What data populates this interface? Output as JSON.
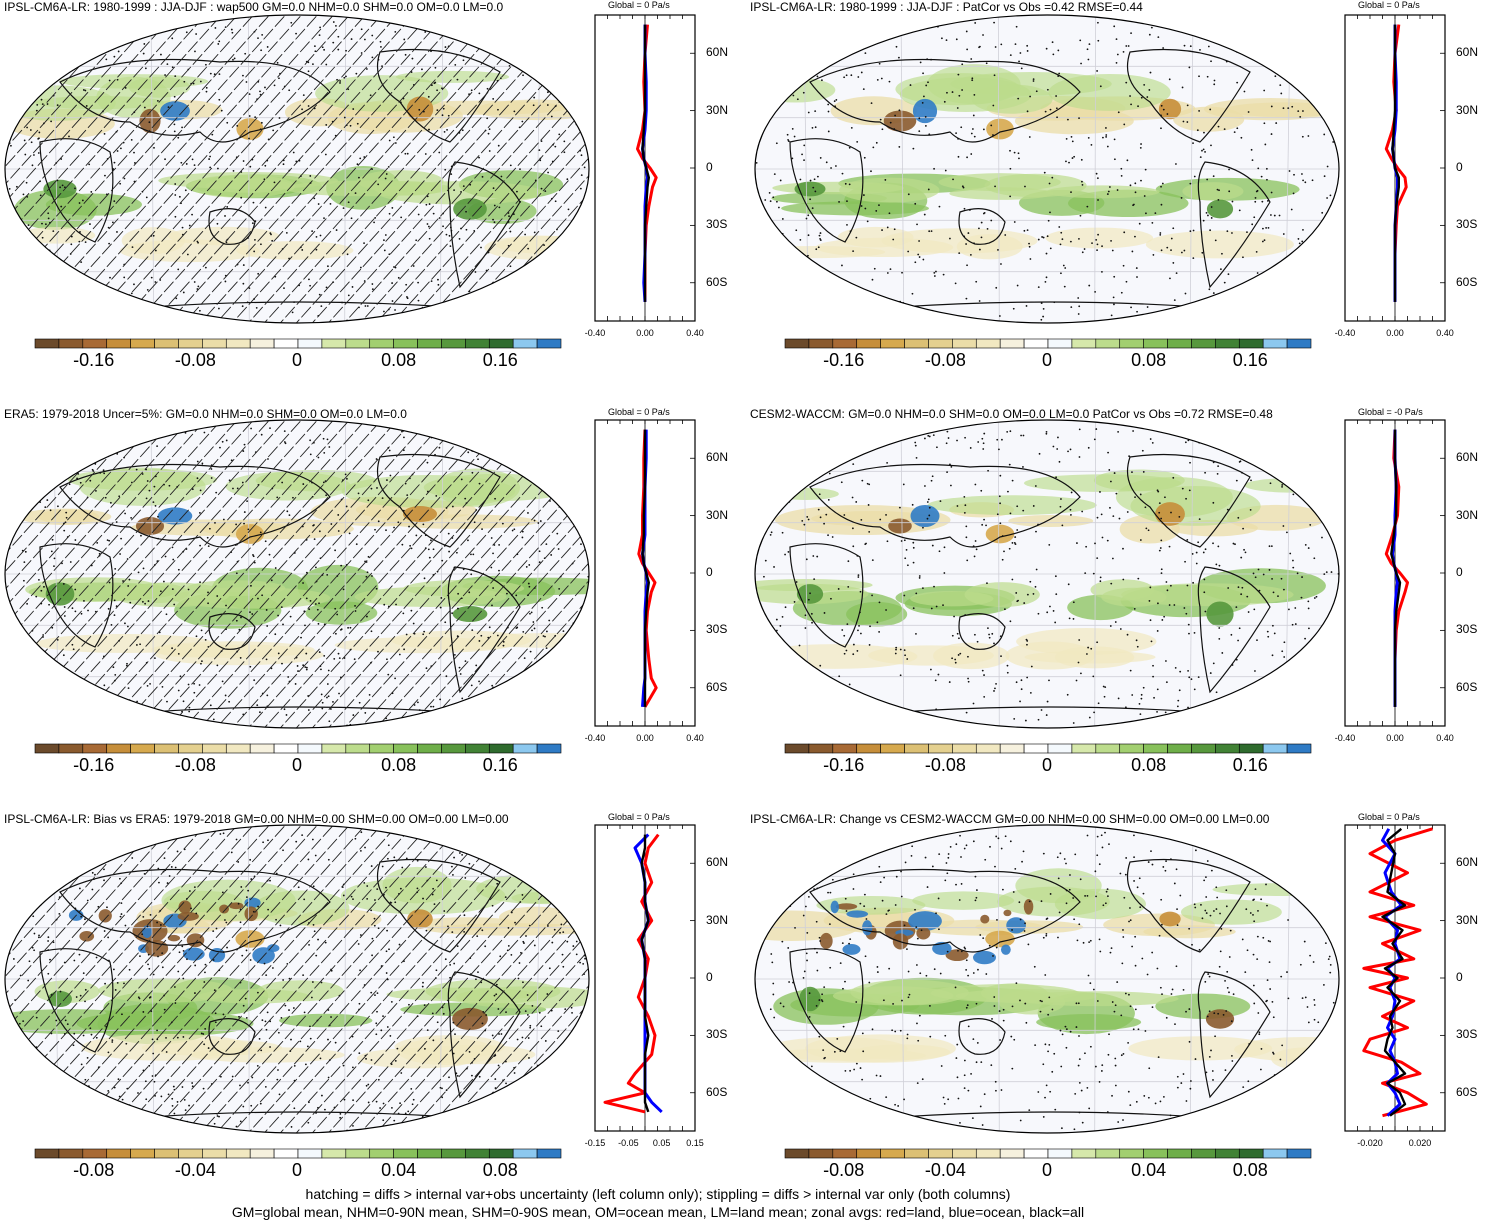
{
  "panels": [
    {
      "title": "IPSL-CM6A-LR: 1980-1999 : JJA-DJF : wap500 GM=0.0 NHM=0.0 SHM=0.0 OM=0.0 LM=0.0",
      "zonal_title": "Global = 0 Pa/s",
      "colorbar_ticks": [
        "-0.16",
        "-0.08",
        "0",
        "0.08",
        "0.16"
      ],
      "zonal_xticks": [
        "-0.40",
        "0.00",
        "0.40"
      ],
      "lat_ticks": [
        "60N",
        "30N",
        "0",
        "30S",
        "60S"
      ],
      "hatching": true
    },
    {
      "title": "IPSL-CM6A-LR: 1980-1999 : JJA-DJF : PatCor vs Obs =0.42 RMSE=0.44",
      "zonal_title": "Global = 0 Pa/s",
      "colorbar_ticks": [
        "-0.16",
        "-0.08",
        "0",
        "0.08",
        "0.16"
      ],
      "zonal_xticks": [
        "-0.40",
        "0.00",
        "0.40"
      ],
      "lat_ticks": [
        "60N",
        "30N",
        "0",
        "30S",
        "60S"
      ],
      "hatching": false
    },
    {
      "title": "ERA5: 1979-2018 Uncer=5%: GM=0.0 NHM=0.0 SHM=0.0 OM=0.0 LM=0.0",
      "zonal_title": "Global = 0 Pa/s",
      "colorbar_ticks": [
        "-0.16",
        "-0.08",
        "0",
        "0.08",
        "0.16"
      ],
      "zonal_xticks": [
        "-0.40",
        "0.00",
        "0.40"
      ],
      "lat_ticks": [
        "60N",
        "30N",
        "0",
        "30S",
        "60S"
      ],
      "hatching": true
    },
    {
      "title": "CESM2-WACCM: GM=0.0 NHM=0.0 SHM=0.0 OM=0.0 LM=0.0 PatCor vs Obs =0.72 RMSE=0.48",
      "zonal_title": "Global = -0 Pa/s",
      "colorbar_ticks": [
        "-0.16",
        "-0.08",
        "0",
        "0.08",
        "0.16"
      ],
      "zonal_xticks": [
        "-0.40",
        "0.00",
        "0.40"
      ],
      "lat_ticks": [
        "60N",
        "30N",
        "0",
        "30S",
        "60S"
      ],
      "hatching": false
    },
    {
      "title": "IPSL-CM6A-LR: Bias vs ERA5: 1979-2018 GM=0.00 NHM=0.00 SHM=0.00 OM=0.00 LM=0.00",
      "zonal_title": "Global = 0 Pa/s",
      "colorbar_ticks": [
        "-0.08",
        "-0.04",
        "0",
        "0.04",
        "0.08"
      ],
      "zonal_xticks": [
        "-0.15",
        "-0.05",
        "0.05",
        "0.15"
      ],
      "lat_ticks": [
        "60N",
        "30N",
        "0",
        "30S",
        "60S"
      ],
      "hatching": true
    },
    {
      "title": "IPSL-CM6A-LR: Change vs CESM2-WACCM GM=0.00 NHM=0.00 SHM=0.00 OM=0.00 LM=0.00",
      "zonal_title": "Global = 0 Pa/s",
      "colorbar_ticks": [
        "-0.08",
        "-0.04",
        "0",
        "0.04",
        "0.08"
      ],
      "zonal_xticks": [
        "-0.020",
        "0.020"
      ],
      "lat_ticks": [
        "60N",
        "30N",
        "0",
        "30S",
        "60S"
      ],
      "hatching": false
    }
  ],
  "footer": {
    "line1": "hatching = diffs > internal var+obs uncertainty (left column only); stippling = diffs > internal var only (both columns)",
    "line2": "GM=global mean, NHM=0-90N mean, SHM=0-90S mean, OM=ocean mean, LM=land mean; zonal avgs: red=land, blue=ocean, black=all"
  },
  "colors": {
    "colorbar": [
      "#6b4a2b",
      "#8a5a2e",
      "#a86a35",
      "#c68e3a",
      "#d6a94e",
      "#dcc074",
      "#e4d08f",
      "#ebdda8",
      "#f1e8c1",
      "#f6f1de",
      "#ffffff",
      "#f4f9fd",
      "#d6e8ab",
      "#bcdc8c",
      "#a2cf70",
      "#88c15b",
      "#6eae49",
      "#57983d",
      "#418235",
      "#2f6b2e",
      "#8cc8ef",
      "#2f7bc5"
    ],
    "land_zonal": "#ff0000",
    "ocean_zonal": "#0000ff",
    "all_zonal": "#000000"
  },
  "chart_data": [
    {
      "type": "heatmap",
      "panel": 1,
      "variable": "wap500",
      "projection": "robinson",
      "colorbar_ticks": [
        -0.16,
        -0.08,
        0,
        0.08,
        0.16
      ],
      "zonal_xlim": [
        -0.4,
        0.4
      ],
      "zonal_ylim": [
        -80,
        80
      ],
      "zonal_series": [
        {
          "color": "land",
          "lat": [
            75,
            60,
            45,
            30,
            20,
            10,
            5,
            0,
            -5,
            -10,
            -20,
            -30,
            -45,
            -60,
            -70
          ],
          "values": [
            0.02,
            0.0,
            -0.01,
            0.0,
            -0.02,
            -0.06,
            -0.02,
            0.04,
            0.09,
            0.06,
            0.03,
            0.01,
            0.0,
            0.0,
            0.0
          ]
        },
        {
          "color": "ocean",
          "lat": [
            75,
            60,
            45,
            30,
            20,
            10,
            5,
            0,
            -5,
            -10,
            -20,
            -30,
            -45,
            -60,
            -70
          ],
          "values": [
            0.0,
            0.0,
            0.01,
            0.01,
            0.0,
            -0.02,
            -0.01,
            0.01,
            0.02,
            0.01,
            0.0,
            0.0,
            0.0,
            -0.01,
            0.0
          ]
        },
        {
          "color": "all",
          "lat": [
            75,
            60,
            45,
            30,
            20,
            10,
            5,
            0,
            -5,
            -10,
            -20,
            -30,
            -45,
            -60,
            -70
          ],
          "values": [
            0.0,
            0.0,
            0.0,
            0.0,
            -0.01,
            -0.02,
            -0.01,
            0.01,
            0.03,
            0.02,
            0.01,
            0.0,
            0.0,
            0.0,
            0.0
          ]
        }
      ]
    },
    {
      "type": "heatmap",
      "panel": 2,
      "variable": "wap500",
      "projection": "robinson",
      "colorbar_ticks": [
        -0.16,
        -0.08,
        0,
        0.08,
        0.16
      ],
      "zonal_xlim": [
        -0.4,
        0.4
      ],
      "zonal_ylim": [
        -80,
        80
      ],
      "zonal_series": [
        {
          "color": "land",
          "lat": [
            75,
            60,
            45,
            30,
            20,
            10,
            5,
            0,
            -5,
            -10,
            -20,
            -30,
            -45,
            -60,
            -70
          ],
          "values": [
            0.03,
            0.0,
            -0.01,
            0.01,
            -0.02,
            -0.07,
            -0.03,
            0.02,
            0.08,
            0.09,
            0.02,
            0.01,
            0.0,
            0.0,
            0.0
          ]
        },
        {
          "color": "ocean",
          "lat": [
            75,
            60,
            45,
            30,
            20,
            10,
            5,
            0,
            -5,
            -10,
            -20,
            -30,
            -45,
            -60,
            -70
          ],
          "values": [
            0.0,
            0.0,
            0.01,
            0.01,
            0.0,
            -0.02,
            -0.01,
            0.0,
            0.02,
            0.02,
            0.01,
            0.0,
            0.0,
            0.0,
            0.0
          ]
        },
        {
          "color": "all",
          "lat": [
            75,
            60,
            45,
            30,
            20,
            10,
            5,
            0,
            -5,
            -10,
            -20,
            -30,
            -45,
            -60,
            -70
          ],
          "values": [
            0.0,
            0.0,
            0.0,
            0.0,
            -0.01,
            -0.02,
            -0.01,
            0.0,
            0.03,
            0.03,
            0.01,
            0.0,
            0.0,
            0.0,
            0.0
          ]
        }
      ]
    },
    {
      "type": "heatmap",
      "panel": 3,
      "variable": "wap500",
      "projection": "robinson",
      "colorbar_ticks": [
        -0.16,
        -0.08,
        0,
        0.08,
        0.16
      ],
      "zonal_xlim": [
        -0.4,
        0.4
      ],
      "zonal_ylim": [
        -80,
        80
      ],
      "zonal_series": [
        {
          "color": "land",
          "lat": [
            75,
            60,
            45,
            30,
            20,
            10,
            5,
            0,
            -5,
            -10,
            -20,
            -30,
            -45,
            -55,
            -60,
            -70
          ],
          "values": [
            0.0,
            -0.01,
            -0.01,
            -0.02,
            -0.02,
            -0.05,
            -0.02,
            0.03,
            0.08,
            0.05,
            0.02,
            0.01,
            0.03,
            0.05,
            0.09,
            0.0
          ]
        },
        {
          "color": "ocean",
          "lat": [
            75,
            60,
            45,
            30,
            20,
            10,
            5,
            0,
            -5,
            -10,
            -20,
            -30,
            -45,
            -55,
            -60,
            -70
          ],
          "values": [
            0.01,
            0.01,
            0.0,
            0.0,
            0.0,
            -0.02,
            -0.01,
            0.01,
            0.02,
            0.01,
            0.0,
            0.0,
            0.0,
            0.0,
            -0.01,
            -0.02
          ]
        },
        {
          "color": "all",
          "lat": [
            75,
            60,
            45,
            30,
            20,
            10,
            5,
            0,
            -5,
            -10,
            -20,
            -30,
            -45,
            -55,
            -60,
            -70
          ],
          "values": [
            0.0,
            0.0,
            0.0,
            -0.01,
            -0.01,
            -0.02,
            -0.01,
            0.01,
            0.03,
            0.02,
            0.01,
            0.0,
            0.0,
            0.0,
            0.0,
            0.0
          ]
        }
      ]
    },
    {
      "type": "heatmap",
      "panel": 4,
      "variable": "wap500",
      "projection": "robinson",
      "colorbar_ticks": [
        -0.16,
        -0.08,
        0,
        0.08,
        0.16
      ],
      "zonal_xlim": [
        -0.4,
        0.4
      ],
      "zonal_ylim": [
        -80,
        80
      ],
      "zonal_series": [
        {
          "color": "land",
          "lat": [
            75,
            60,
            45,
            30,
            20,
            10,
            5,
            0,
            -5,
            -10,
            -20,
            -30,
            -45,
            -60,
            -70
          ],
          "values": [
            0.0,
            -0.01,
            0.03,
            0.02,
            -0.02,
            -0.07,
            -0.03,
            0.04,
            0.1,
            0.08,
            0.03,
            0.01,
            0.0,
            0.0,
            0.0
          ]
        },
        {
          "color": "ocean",
          "lat": [
            75,
            60,
            45,
            30,
            20,
            10,
            5,
            0,
            -5,
            -10,
            -20,
            -30,
            -45,
            -60,
            -70
          ],
          "values": [
            0.0,
            0.0,
            0.01,
            0.0,
            0.0,
            -0.02,
            -0.01,
            0.01,
            0.02,
            0.01,
            0.0,
            0.0,
            0.0,
            0.0,
            0.0
          ]
        },
        {
          "color": "all",
          "lat": [
            75,
            60,
            45,
            30,
            20,
            10,
            5,
            0,
            -5,
            -10,
            -20,
            -30,
            -45,
            -60,
            -70
          ],
          "values": [
            0.0,
            0.0,
            0.01,
            0.01,
            -0.01,
            -0.03,
            -0.01,
            0.01,
            0.04,
            0.03,
            0.01,
            0.0,
            0.0,
            0.0,
            0.0
          ]
        }
      ]
    },
    {
      "type": "heatmap",
      "panel": 5,
      "variable": "wap500 bias",
      "projection": "robinson",
      "colorbar_ticks": [
        -0.08,
        -0.04,
        0,
        0.04,
        0.08
      ],
      "zonal_xlim": [
        -0.15,
        0.15
      ],
      "zonal_ylim": [
        -80,
        80
      ],
      "zonal_series": [
        {
          "color": "land",
          "lat": [
            75,
            68,
            60,
            50,
            40,
            30,
            20,
            10,
            0,
            -10,
            -20,
            -30,
            -40,
            -50,
            -55,
            -60,
            -65,
            -70
          ],
          "values": [
            0.04,
            0.01,
            0.0,
            0.02,
            -0.01,
            0.02,
            -0.02,
            0.01,
            0.0,
            -0.02,
            0.01,
            0.03,
            0.02,
            -0.03,
            -0.05,
            0.0,
            -0.12,
            0.0
          ]
        },
        {
          "color": "ocean",
          "lat": [
            75,
            68,
            60,
            50,
            40,
            30,
            20,
            10,
            0,
            -10,
            -20,
            -30,
            -40,
            -50,
            -55,
            -60,
            -65,
            -70
          ],
          "values": [
            0.01,
            -0.03,
            -0.01,
            0.0,
            0.0,
            0.01,
            -0.01,
            0.0,
            0.0,
            0.0,
            0.0,
            0.0,
            0.0,
            0.0,
            0.0,
            0.0,
            0.02,
            0.05
          ]
        },
        {
          "color": "all",
          "lat": [
            75,
            68,
            60,
            50,
            40,
            30,
            20,
            10,
            0,
            -10,
            -20,
            -30,
            -40,
            -50,
            -55,
            -60,
            -65,
            -70
          ],
          "values": [
            0.0,
            0.0,
            -0.01,
            0.0,
            0.0,
            0.01,
            -0.01,
            0.0,
            0.0,
            0.0,
            0.0,
            0.01,
            0.0,
            0.0,
            0.0,
            0.0,
            0.0,
            0.01
          ]
        }
      ]
    },
    {
      "type": "heatmap",
      "panel": 6,
      "variable": "wap500 change",
      "projection": "robinson",
      "colorbar_ticks": [
        -0.08,
        -0.04,
        0,
        0.04,
        0.08
      ],
      "zonal_xlim": [
        -0.04,
        0.04
      ],
      "zonal_ylim": [
        -80,
        80
      ],
      "zonal_series": [
        {
          "color": "land",
          "lat": [
            78,
            72,
            65,
            55,
            45,
            38,
            32,
            25,
            18,
            10,
            5,
            0,
            -5,
            -12,
            -20,
            -26,
            -32,
            -38,
            -44,
            -50,
            -55,
            -60,
            -66,
            -72
          ],
          "values": [
            0.03,
            0.0,
            -0.02,
            0.01,
            -0.02,
            0.015,
            -0.02,
            0.02,
            -0.01,
            0.015,
            -0.025,
            0.01,
            -0.02,
            0.015,
            -0.01,
            0.01,
            -0.02,
            -0.025,
            0.005,
            0.02,
            -0.01,
            0.01,
            0.025,
            -0.01
          ]
        },
        {
          "color": "ocean",
          "lat": [
            78,
            72,
            65,
            55,
            45,
            38,
            32,
            25,
            18,
            10,
            5,
            0,
            -5,
            -12,
            -20,
            -26,
            -32,
            -38,
            -44,
            -50,
            -55,
            -60,
            -66,
            -72
          ],
          "values": [
            -0.005,
            -0.01,
            0.0,
            -0.008,
            -0.003,
            0.005,
            -0.008,
            0.002,
            0.0,
            0.004,
            -0.006,
            0.0,
            -0.004,
            0.0,
            -0.002,
            -0.006,
            0.0,
            -0.004,
            0.0,
            0.002,
            -0.006,
            0.0,
            0.004,
            -0.006
          ]
        },
        {
          "color": "all",
          "lat": [
            78,
            72,
            65,
            55,
            45,
            38,
            32,
            25,
            18,
            10,
            5,
            0,
            -5,
            -12,
            -20,
            -26,
            -32,
            -38,
            -44,
            -50,
            -55,
            -60,
            -66,
            -72
          ],
          "values": [
            0.005,
            -0.006,
            0.0,
            -0.003,
            -0.006,
            0.008,
            -0.01,
            0.006,
            -0.002,
            0.006,
            -0.008,
            0.002,
            -0.006,
            0.004,
            -0.004,
            -0.002,
            -0.006,
            -0.008,
            0.0,
            0.008,
            -0.006,
            0.004,
            0.008,
            -0.004
          ]
        }
      ]
    }
  ]
}
